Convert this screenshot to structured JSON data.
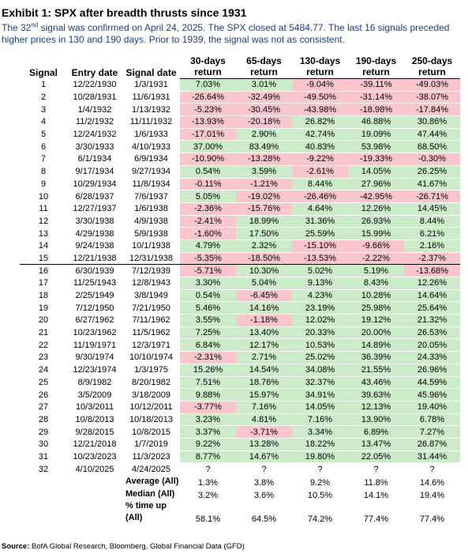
{
  "header": {
    "title": "Exhibit 1: SPX after breadth thrusts since 1931",
    "subtitle": {
      "before": "The 32",
      "sup": "nd",
      "after": " signal was confirmed on April 24, 2025. The SPX closed at 5484.77. The last 16 signals preceded higher prices in 130 and 190 days. Prior to 1939, the signal was not as consistent."
    }
  },
  "table": {
    "columns": [
      "Signal",
      "Entry date",
      "Signal date",
      "30-days return",
      "65-days return",
      "130-days return",
      "190-days return",
      "250-days return"
    ],
    "rows": [
      [
        "1",
        "12/22/1930",
        "1/3/1931",
        "7.03%",
        "3.01%",
        "-9.04%",
        "-39.11%",
        "-49.03%"
      ],
      [
        "2",
        "10/28/1931",
        "11/6/1931",
        "-26.64%",
        "-32.49%",
        "-49.50%",
        "-31.14%",
        "-38.07%"
      ],
      [
        "3",
        "1/4/1932",
        "1/13/1932",
        "-5.23%",
        "-30.45%",
        "-43.98%",
        "-18.98%",
        "-17.84%"
      ],
      [
        "4",
        "11/2/1932",
        "11/11/1932",
        "-13.93%",
        "-20.18%",
        "26.82%",
        "46.88%",
        "30.86%"
      ],
      [
        "5",
        "12/24/1932",
        "1/6/1933",
        "-17.01%",
        "2.90%",
        "42.74%",
        "19.09%",
        "47.44%"
      ],
      [
        "6",
        "3/30/1933",
        "4/10/1933",
        "37.00%",
        "83.49%",
        "40.83%",
        "53.98%",
        "68.50%"
      ],
      [
        "7",
        "6/1/1934",
        "6/9/1934",
        "-10.90%",
        "-13.28%",
        "-9.22%",
        "-19.33%",
        "-0.30%"
      ],
      [
        "8",
        "9/17/1934",
        "9/27/1934",
        "0.54%",
        "3.59%",
        "-2.61%",
        "14.05%",
        "26.25%"
      ],
      [
        "9",
        "10/29/1934",
        "11/8/1934",
        "-0.11%",
        "-1.21%",
        "8.44%",
        "27.96%",
        "41.67%"
      ],
      [
        "10",
        "6/28/1937",
        "7/6/1937",
        "5.05%",
        "-19.02%",
        "-26.46%",
        "-42.95%",
        "-26.71%"
      ],
      [
        "11",
        "12/27/1937",
        "1/6/1938",
        "-2.36%",
        "-15.76%",
        "4.64%",
        "12.26%",
        "14.45%"
      ],
      [
        "12",
        "3/30/1938",
        "4/9/1938",
        "-2.41%",
        "18.99%",
        "31.36%",
        "26.93%",
        "8.44%"
      ],
      [
        "13",
        "4/29/1938",
        "5/9/1938",
        "-1.60%",
        "17.50%",
        "25.59%",
        "15.99%",
        "6.21%"
      ],
      [
        "14",
        "9/24/1938",
        "10/1/1938",
        "4.79%",
        "2.32%",
        "-15.10%",
        "-9.66%",
        "2.16%"
      ],
      [
        "15",
        "12/21/1938",
        "12/31/1938",
        "-5.35%",
        "-18.50%",
        "-13.53%",
        "-2.22%",
        "-2.37%"
      ],
      [
        "16",
        "6/30/1939",
        "7/12/1939",
        "-5.71%",
        "10.30%",
        "5.02%",
        "5.19%",
        "-13.68%"
      ],
      [
        "17",
        "11/25/1943",
        "12/8/1943",
        "3.30%",
        "5.04%",
        "9.13%",
        "8.43%",
        "12.26%"
      ],
      [
        "18",
        "2/25/1949",
        "3/8/1949",
        "0.54%",
        "-6.45%",
        "4.23%",
        "10.28%",
        "14.64%"
      ],
      [
        "19",
        "7/12/1950",
        "7/21/1950",
        "5.46%",
        "14.16%",
        "23.19%",
        "25.98%",
        "25.64%"
      ],
      [
        "20",
        "6/27/1962",
        "7/11/1962",
        "3.55%",
        "-1.18%",
        "12.02%",
        "19.12%",
        "21.32%"
      ],
      [
        "21",
        "10/23/1962",
        "11/5/1962",
        "7.25%",
        "13.40%",
        "20.33%",
        "20.00%",
        "26.53%"
      ],
      [
        "22",
        "11/19/1971",
        "12/3/1971",
        "6.84%",
        "12.17%",
        "10.53%",
        "14.89%",
        "20.05%"
      ],
      [
        "23",
        "9/30/1974",
        "10/10/1974",
        "-2.31%",
        "2.71%",
        "25.02%",
        "36.39%",
        "24.33%"
      ],
      [
        "24",
        "12/23/1974",
        "1/3/1975",
        "15.26%",
        "14.54%",
        "34.08%",
        "21.55%",
        "26.96%"
      ],
      [
        "25",
        "8/9/1982",
        "8/20/1982",
        "7.51%",
        "18.76%",
        "32.37%",
        "43.46%",
        "44.59%"
      ],
      [
        "26",
        "3/5/2009",
        "3/18/2009",
        "9.88%",
        "15.97%",
        "34.91%",
        "39.63%",
        "45.96%"
      ],
      [
        "27",
        "10/3/2011",
        "10/12/2011",
        "-3.77%",
        "7.16%",
        "14.05%",
        "12.13%",
        "19.40%"
      ],
      [
        "28",
        "10/8/2013",
        "10/18/2013",
        "3.23%",
        "4.81%",
        "7.16%",
        "13.90%",
        "6.78%"
      ],
      [
        "29",
        "9/28/2015",
        "10/8/2015",
        "3.37%",
        "-3.71%",
        "3.34%",
        "6.89%",
        "7.27%"
      ],
      [
        "30",
        "12/21/2018",
        "1/7/2019",
        "9.22%",
        "13.28%",
        "18.22%",
        "13.47%",
        "26.87%"
      ],
      [
        "31",
        "10/23/2023",
        "11/3/2023",
        "8.77%",
        "14.67%",
        "19.80%",
        "22.05%",
        "31.44%"
      ],
      [
        "32",
        "4/10/2025",
        "4/24/2025",
        "?",
        "?",
        "?",
        "?",
        "?"
      ]
    ],
    "summary": [
      {
        "label": "Average (All)",
        "values": [
          "1.3%",
          "3.8%",
          "9.2%",
          "11.8%",
          "14.6%"
        ]
      },
      {
        "label": "Median (All)",
        "values": [
          "3.2%",
          "3.6%",
          "10.5%",
          "14.1%",
          "19.4%"
        ]
      },
      {
        "label": "% time up (All)",
        "values": [
          "58.1%",
          "64.5%",
          "74.2%",
          "77.4%",
          "77.4%"
        ]
      }
    ]
  },
  "footer": {
    "source_label": "Source:",
    "source_text": " BofA Global Research, Bloomberg, Global Financial Data (GFD)"
  }
}
